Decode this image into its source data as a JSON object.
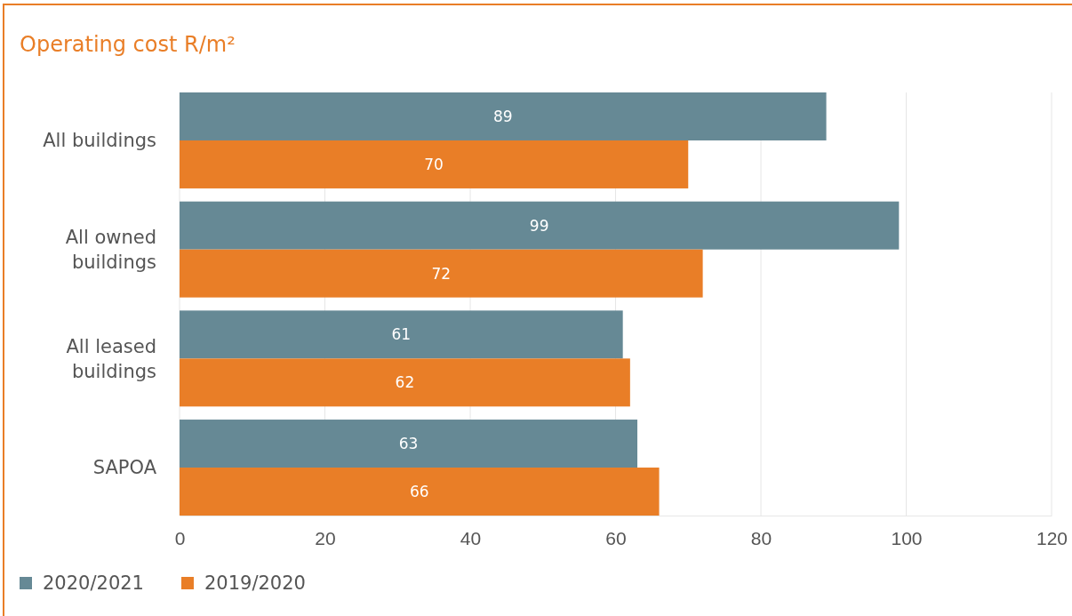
{
  "chart_data": {
    "type": "bar",
    "orientation": "horizontal",
    "title": "Operating cost R/m²",
    "categories": [
      "All buildings",
      "All owned buildings",
      "All leased buildings",
      "SAPOA"
    ],
    "series": [
      {
        "name": "2020/2021",
        "color": "#668995",
        "values": [
          89,
          99,
          61,
          63
        ]
      },
      {
        "name": "2019/2020",
        "color": "#e97e27",
        "values": [
          70,
          72,
          62,
          66
        ]
      }
    ],
    "xlim": [
      0,
      120
    ],
    "xticks": [
      0,
      20,
      40,
      60,
      80,
      100,
      120
    ],
    "grid": "x",
    "data_labels": true,
    "legend": "bottom left"
  }
}
